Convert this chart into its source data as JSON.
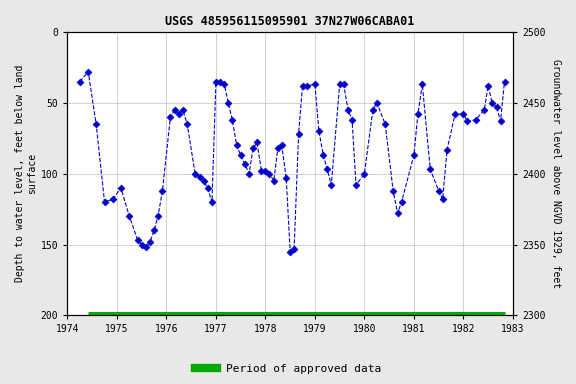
{
  "title": "USGS 485956115095901 37N27W06CABA01",
  "ylabel_left": "Depth to water level, feet below land\nsurface",
  "ylabel_right": "Groundwater level above NGVD 1929, feet",
  "xlim": [
    1974,
    1983
  ],
  "ylim_left": [
    0,
    200
  ],
  "ylim_right": [
    2300,
    2500
  ],
  "xticks": [
    1974,
    1975,
    1976,
    1977,
    1978,
    1979,
    1980,
    1981,
    1982,
    1983
  ],
  "yticks_left": [
    0,
    50,
    100,
    150,
    200
  ],
  "yticks_right": [
    2300,
    2350,
    2400,
    2450,
    2500
  ],
  "line_color": "#0000CC",
  "marker_color": "#0000CC",
  "background_color": "#e8e8e8",
  "plot_bg_color": "#ffffff",
  "green_bar_color": "#00aa00",
  "legend_label": "Period of approved data",
  "x_data": [
    1974.25,
    1974.42,
    1974.58,
    1974.75,
    1974.92,
    1975.08,
    1975.25,
    1975.42,
    1975.5,
    1975.58,
    1975.67,
    1975.75,
    1975.83,
    1975.92,
    1976.08,
    1976.17,
    1976.25,
    1976.33,
    1976.42,
    1976.58,
    1976.67,
    1976.75,
    1976.83,
    1976.92,
    1977.0,
    1977.08,
    1977.17,
    1977.25,
    1977.33,
    1977.42,
    1977.5,
    1977.58,
    1977.67,
    1977.75,
    1977.83,
    1977.92,
    1978.0,
    1978.08,
    1978.17,
    1978.25,
    1978.33,
    1978.42,
    1978.5,
    1978.58,
    1978.67,
    1978.75,
    1978.83,
    1979.0,
    1979.08,
    1979.17,
    1979.25,
    1979.33,
    1979.5,
    1979.58,
    1979.67,
    1979.75,
    1979.83,
    1980.0,
    1980.17,
    1980.25,
    1980.42,
    1980.58,
    1980.67,
    1980.75,
    1981.0,
    1981.08,
    1981.17,
    1981.33,
    1981.5,
    1981.58,
    1981.67,
    1981.83,
    1982.0,
    1982.08,
    1982.25,
    1982.42,
    1982.5,
    1982.58,
    1982.67,
    1982.75,
    1982.83
  ],
  "y_data": [
    35,
    28,
    65,
    120,
    118,
    110,
    130,
    147,
    150,
    152,
    148,
    140,
    130,
    112,
    60,
    55,
    58,
    55,
    65,
    100,
    102,
    105,
    110,
    120,
    35,
    35,
    37,
    50,
    62,
    80,
    87,
    93,
    100,
    82,
    78,
    98,
    98,
    100,
    105,
    82,
    80,
    103,
    155,
    153,
    72,
    38,
    38,
    37,
    70,
    87,
    97,
    108,
    37,
    37,
    55,
    62,
    108,
    100,
    55,
    50,
    65,
    112,
    128,
    120,
    87,
    58,
    37,
    97,
    112,
    118,
    83,
    58,
    58,
    63,
    62,
    55,
    38,
    50,
    53,
    63,
    35
  ],
  "green_bar_xstart": 1974.42,
  "green_bar_xend": 1982.83
}
